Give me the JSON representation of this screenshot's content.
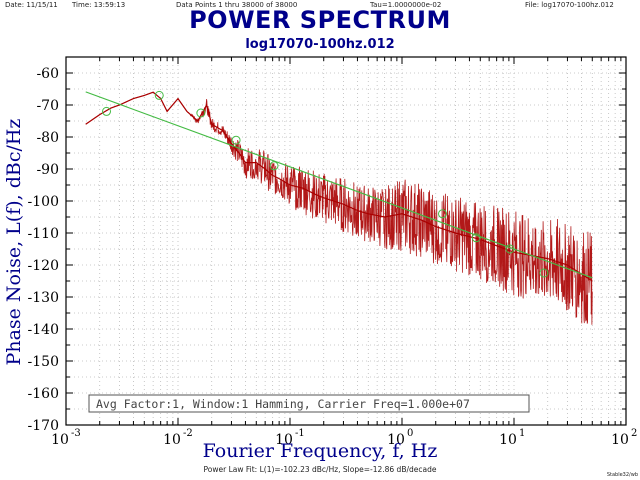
{
  "header": {
    "date": "Date: 11/15/11",
    "time": "Time: 13:59:13",
    "data_points": "Data Points 1 thru 38000 of 38000",
    "tau": "Tau=1.0000000e-02",
    "file": "File: log17070-100hz.012"
  },
  "footer": {
    "fit": "Power Law Fit: L(1)=-102.23 dBc/Hz, Slope=-12.86 dB/decade",
    "corner": "Stable32/wb"
  },
  "chart_data": {
    "type": "line",
    "title": "POWER SPECTRUM",
    "subtitle": "log17070-100hz.012",
    "xlabel": "Fourier Frequency, f, Hz",
    "ylabel": "Phase Noise, L(f), dBc/Hz",
    "x_scale": "log",
    "xlim": [
      0.001,
      100
    ],
    "ylim": [
      -170,
      -55
    ],
    "x_ticks": [
      {
        "base": "10",
        "exp": "-3"
      },
      {
        "base": "10",
        "exp": "-2"
      },
      {
        "base": "10",
        "exp": "-1"
      },
      {
        "base": "10",
        "exp": "0"
      },
      {
        "base": "10",
        "exp": "1"
      },
      {
        "base": "10",
        "exp": "2"
      }
    ],
    "y_ticks": [
      "-60",
      "-70",
      "-80",
      "-90",
      "-100",
      "-110",
      "-120",
      "-130",
      "-140",
      "-150",
      "-160",
      "-170"
    ],
    "grid": true,
    "annotation": "Avg Factor:1, Window:1 Hamming, Carrier Freq=1.000e+07",
    "colors": {
      "spectrum": "#aa0000",
      "fit": "#44bb44",
      "text": "#00008b"
    },
    "series": [
      {
        "kind": "spectrum",
        "x": [
          0.0015,
          0.002,
          0.0025,
          0.003,
          0.004,
          0.005,
          0.006,
          0.007,
          0.008,
          0.01,
          0.012,
          0.015,
          0.018,
          0.02,
          0.025,
          0.03,
          0.035,
          0.04,
          0.05,
          0.06,
          0.07,
          0.08,
          0.1,
          0.13,
          0.17,
          0.2,
          0.3,
          0.4,
          0.5,
          0.7,
          1.0,
          1.5,
          2.0,
          3.0,
          5.0,
          7.0,
          10.0,
          20.0,
          30.0,
          50.0
        ],
        "y": [
          -76,
          -73,
          -71,
          -70,
          -68,
          -67,
          -66,
          -68,
          -72,
          -68,
          -72,
          -75,
          -70,
          -76,
          -78,
          -82,
          -85,
          -88,
          -88,
          -90,
          -92,
          -93,
          -95,
          -96,
          -98,
          -99,
          -101,
          -103,
          -104,
          -105,
          -104,
          -106,
          -108,
          -110,
          -112,
          -114,
          -116,
          -118,
          -120,
          -125
        ],
        "spread": [
          0,
          0,
          0,
          0,
          0,
          0,
          0,
          0,
          0,
          0,
          0,
          1,
          2,
          2,
          2,
          3,
          4,
          5,
          5,
          6,
          6,
          6,
          7,
          8,
          8,
          8,
          9,
          9,
          9,
          10,
          12,
          12,
          12,
          12,
          13,
          13,
          14,
          14,
          15,
          16
        ]
      },
      {
        "kind": "fit",
        "x": [
          0.0015,
          50
        ],
        "y": [
          -65.9,
          -124
        ]
      },
      {
        "kind": "markers",
        "x": [
          0.0023,
          0.0068,
          0.016,
          0.033,
          0.072,
          2.3,
          4.6,
          9.2,
          18.5
        ],
        "y": [
          -72,
          -67,
          -72.5,
          -81,
          -89,
          -104,
          -111.5,
          -115,
          -122.5
        ]
      }
    ]
  }
}
